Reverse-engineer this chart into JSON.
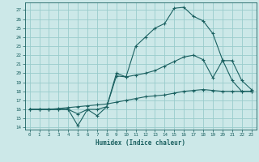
{
  "xlabel": "Humidex (Indice chaleur)",
  "bg_color": "#cce8e8",
  "grid_color": "#99cccc",
  "line_color": "#1a6060",
  "xlim": [
    -0.5,
    23.5
  ],
  "ylim": [
    13.8,
    27.8
  ],
  "xticks": [
    0,
    1,
    2,
    3,
    4,
    5,
    6,
    7,
    8,
    9,
    10,
    11,
    12,
    13,
    14,
    15,
    16,
    17,
    18,
    19,
    20,
    21,
    22,
    23
  ],
  "yticks": [
    14,
    15,
    16,
    17,
    18,
    19,
    20,
    21,
    22,
    23,
    24,
    25,
    26,
    27
  ],
  "line1_x": [
    0,
    1,
    2,
    3,
    4,
    5,
    6,
    7,
    8,
    9,
    10,
    11,
    12,
    13,
    14,
    15,
    16,
    17,
    18,
    19,
    20,
    21,
    22,
    23
  ],
  "line1_y": [
    16,
    16,
    16,
    16,
    16,
    14.2,
    16,
    16,
    16.3,
    20.0,
    19.6,
    23.0,
    24.0,
    25.0,
    25.5,
    27.2,
    27.3,
    26.3,
    25.8,
    24.4,
    21.5,
    19.2,
    18.0,
    18.0
  ],
  "line2_x": [
    0,
    1,
    2,
    3,
    4,
    5,
    6,
    7,
    8,
    9,
    10,
    11,
    12,
    13,
    14,
    15,
    16,
    17,
    18,
    19,
    20,
    21,
    22,
    23
  ],
  "line2_y": [
    16,
    16,
    16,
    16,
    16,
    15.5,
    16,
    15.3,
    16.3,
    19.7,
    19.6,
    19.8,
    20.0,
    20.3,
    20.8,
    21.3,
    21.8,
    22.0,
    21.5,
    19.5,
    21.4,
    21.4,
    19.2,
    18.2
  ],
  "line3_x": [
    0,
    1,
    2,
    3,
    4,
    5,
    6,
    7,
    8,
    9,
    10,
    11,
    12,
    13,
    14,
    15,
    16,
    17,
    18,
    19,
    20,
    21,
    22,
    23
  ],
  "line3_y": [
    16,
    16,
    16,
    16.1,
    16.2,
    16.3,
    16.4,
    16.5,
    16.6,
    16.8,
    17.0,
    17.2,
    17.4,
    17.5,
    17.6,
    17.8,
    18.0,
    18.1,
    18.2,
    18.1,
    18.0,
    18.0,
    18.0,
    18.0
  ]
}
